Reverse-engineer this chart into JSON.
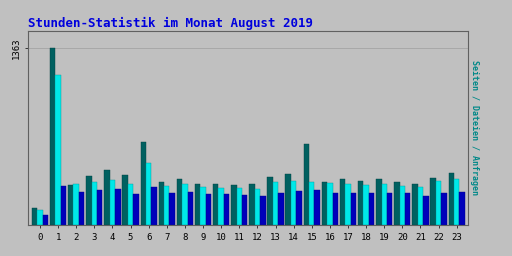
{
  "title": "Stunden-Statistik im Monat August 2019",
  "title_color": "#0000dd",
  "ylabel": "Seiten / Dateien / Anfragen",
  "ylabel_color": "#008888",
  "background_color": "#c0c0c0",
  "plot_bg_color": "#c0c0c0",
  "grid_color": "#a8a8a8",
  "ytick_label": "1363",
  "hours": [
    0,
    1,
    2,
    3,
    4,
    5,
    6,
    7,
    8,
    9,
    10,
    11,
    12,
    13,
    14,
    15,
    16,
    17,
    18,
    19,
    20,
    21,
    22,
    23
  ],
  "seiten": [
    130,
    1363,
    310,
    380,
    430,
    390,
    640,
    335,
    355,
    320,
    315,
    310,
    315,
    375,
    395,
    630,
    335,
    360,
    345,
    355,
    335,
    315,
    365,
    405
  ],
  "dateien": [
    115,
    1160,
    315,
    330,
    350,
    320,
    480,
    305,
    315,
    295,
    290,
    285,
    280,
    330,
    345,
    330,
    325,
    320,
    310,
    315,
    300,
    295,
    340,
    360
  ],
  "anfragen": [
    80,
    305,
    255,
    270,
    280,
    245,
    295,
    248,
    255,
    238,
    242,
    232,
    228,
    248,
    262,
    270,
    252,
    252,
    252,
    252,
    248,
    228,
    252,
    258
  ],
  "color_seiten": "#006060",
  "color_dateien": "#00e8e8",
  "color_anfragen": "#0000bb",
  "ylim_max": 1500,
  "bar_width": 0.3,
  "figsize": [
    5.12,
    2.56
  ],
  "dpi": 100
}
